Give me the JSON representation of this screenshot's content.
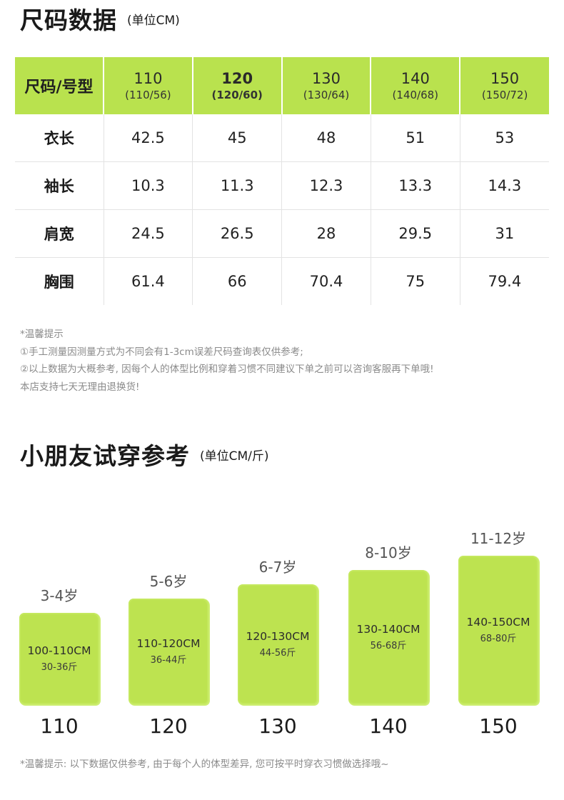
{
  "section1": {
    "title": "尺码数据",
    "unit": "(单位CM)"
  },
  "table": {
    "corner_label": "尺码/号型",
    "columns": [
      {
        "size": "110",
        "sub": "(110/56)"
      },
      {
        "size": "120",
        "sub": "(120/60)"
      },
      {
        "size": "130",
        "sub": "(130/64)"
      },
      {
        "size": "140",
        "sub": "(140/68)"
      },
      {
        "size": "150",
        "sub": "(150/72)"
      }
    ],
    "rows": [
      {
        "label": "衣长",
        "values": [
          "42.5",
          "45",
          "48",
          "51",
          "53"
        ]
      },
      {
        "label": "袖长",
        "values": [
          "10.3",
          "11.3",
          "12.3",
          "13.3",
          "14.3"
        ]
      },
      {
        "label": "肩宽",
        "values": [
          "24.5",
          "26.5",
          "28",
          "29.5",
          "31"
        ]
      },
      {
        "label": "胸围",
        "values": [
          "61.4",
          "66",
          "70.4",
          "75",
          "79.4"
        ]
      }
    ]
  },
  "notes": [
    "*温馨提示",
    "①手工测量因测量方式为不同会有1-3cm误差尺码查询表仅供参考;",
    "②以上数据为大概参考, 因每个人的体型比例和穿着习惯不同建议下单之前可以咨询客服再下单哦!",
    "本店支持七天无理由退换货!"
  ],
  "section2": {
    "title": "小朋友试穿参考",
    "unit": "(单位CM/斤)"
  },
  "chart_data": {
    "type": "bar",
    "categories": [
      "110",
      "120",
      "130",
      "140",
      "150"
    ],
    "age_labels": [
      "3-4岁",
      "5-6岁",
      "6-7岁",
      "8-10岁",
      "11-12岁"
    ],
    "height_ranges": [
      "100-110CM",
      "110-120CM",
      "120-130CM",
      "130-140CM",
      "140-150CM"
    ],
    "weight_ranges": [
      "30-36斤",
      "36-44斤",
      "44-56斤",
      "56-68斤",
      "68-80斤"
    ],
    "values": [
      1,
      2,
      3,
      4,
      5
    ],
    "colors": {
      "bar": "#bde350"
    }
  },
  "bottom_note": "*温馨提示: 以下数据仅供参考, 由于每个人的体型差异, 您可按平时穿衣习惯做选择哦~"
}
